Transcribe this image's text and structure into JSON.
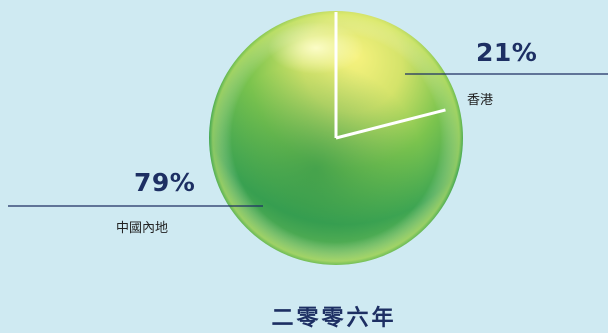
{
  "chart_data": {
    "type": "pie",
    "title": "二零零六年",
    "slices": [
      {
        "label": "香港",
        "value": 21,
        "value_label": "21%"
      },
      {
        "label": "中國內地",
        "value": 79,
        "value_label": "79%"
      }
    ],
    "colors": {
      "background": "#cfeaf2",
      "ball_light": "#f3ef7a",
      "ball_dark": "#2e9a52",
      "leader_line": "#1d2f63",
      "divider": "#ffffff"
    }
  }
}
